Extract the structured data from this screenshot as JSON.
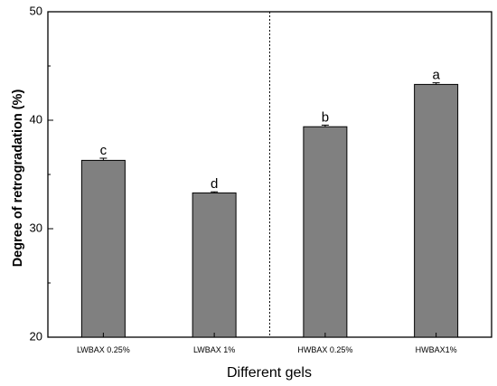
{
  "chart_data": {
    "type": "bar",
    "categories": [
      "LWBAX 0.25%",
      "LWBAX 1%",
      "HWBAX 0.25%",
      "HWBAX1%"
    ],
    "values": [
      36.3,
      33.3,
      39.4,
      43.3
    ],
    "errors": [
      0.2,
      0.1,
      0.15,
      0.15
    ],
    "significance": [
      "c",
      "d",
      "b",
      "a"
    ],
    "xlabel": "Different  gels",
    "ylabel": "Degree of retrogradation (%)",
    "ylim": [
      20,
      50
    ],
    "yticks": [
      20,
      30,
      40,
      50
    ],
    "divider_after_category": 2,
    "bar_color": "#808080",
    "grid": false
  }
}
